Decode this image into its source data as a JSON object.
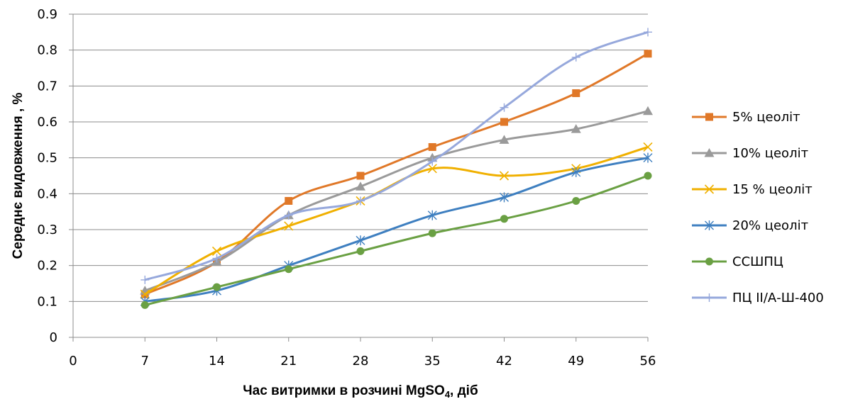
{
  "chart_data": {
    "type": "line",
    "title": "",
    "xlabel": "Час витримки в  розчині MgSO",
    "xlabel_sub": "4",
    "xlabel_suffix": ", діб",
    "ylabel": "Середнє видовження , %",
    "x_ticks": [
      "0",
      "7",
      "14",
      "21",
      "28",
      "35",
      "42",
      "49",
      "56"
    ],
    "y_ticks": [
      "0",
      "0.1",
      "0.2",
      "0.3",
      "0.4",
      "0.5",
      "0.6",
      "0.7",
      "0.8",
      "0.9"
    ],
    "xlim": [
      0,
      56
    ],
    "ylim": [
      0,
      0.9
    ],
    "grid": "horizontal",
    "legend_position": "right",
    "x": [
      7,
      14,
      21,
      28,
      35,
      42,
      49,
      56
    ],
    "series": [
      {
        "name": "5% цеоліт",
        "color": "#E07828",
        "marker": "square",
        "values": [
          0.12,
          0.21,
          0.38,
          0.45,
          0.53,
          0.6,
          0.68,
          0.79
        ]
      },
      {
        "name": "10% цеоліт",
        "color": "#9A9A9A",
        "marker": "triangle",
        "values": [
          0.13,
          0.21,
          0.34,
          0.42,
          0.5,
          0.55,
          0.58,
          0.63
        ]
      },
      {
        "name": "15 % цеоліт",
        "color": "#F0B000",
        "marker": "x",
        "values": [
          0.12,
          0.24,
          0.31,
          0.38,
          0.47,
          0.45,
          0.47,
          0.53
        ]
      },
      {
        "name": "20% цеоліт",
        "color": "#3E7FC0",
        "marker": "star",
        "values": [
          0.1,
          0.13,
          0.2,
          0.27,
          0.34,
          0.39,
          0.46,
          0.5
        ]
      },
      {
        "name": "ССШПЦ",
        "color": "#6AA043",
        "marker": "circle",
        "values": [
          0.09,
          0.14,
          0.19,
          0.24,
          0.29,
          0.33,
          0.38,
          0.45
        ]
      },
      {
        "name": "ПЦ II/А-Ш-400",
        "color": "#96A8DC",
        "marker": "plus",
        "values": [
          0.16,
          0.22,
          0.34,
          0.38,
          0.49,
          0.64,
          0.78,
          0.85
        ]
      }
    ]
  }
}
